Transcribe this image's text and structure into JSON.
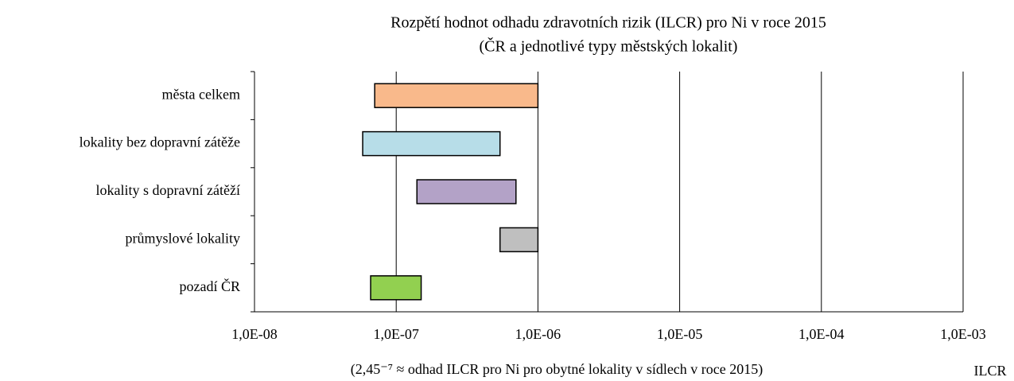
{
  "chart_data": {
    "type": "floating-bar",
    "title": "Rozpětí hodnot odhadu zdravotních rizik (ILCR) pro Ni v roce 2015",
    "subtitle": "(ČR a jednotlivé typy městských lokalit)",
    "categories": [
      "města celkem",
      "lokality bez dopravní zátěže",
      "lokality s dopravní zátěží",
      "průmyslové lokality",
      "pozadí ČR"
    ],
    "low": [
      7.05e-08,
      5.8e-08,
      1.4e-07,
      5.4e-07,
      6.6e-08
    ],
    "high": [
      1e-06,
      5.4e-07,
      7e-07,
      1e-06,
      1.5e-07
    ],
    "colors": [
      "#f9b98b",
      "#b7dde8",
      "#b3a2c7",
      "#bfbfbf",
      "#92d050"
    ],
    "xscale": "log",
    "xlim": [
      1e-08,
      0.001
    ],
    "xticks": [
      {
        "value": 1e-08,
        "label": "1,0E-08"
      },
      {
        "value": 1e-07,
        "label": "1,0E-07"
      },
      {
        "value": 1e-06,
        "label": "1,0E-06"
      },
      {
        "value": 1e-05,
        "label": "1,0E-05"
      },
      {
        "value": 0.0001,
        "label": "1,0E-04"
      },
      {
        "value": 0.001,
        "label": "1,0E-03"
      }
    ],
    "grid": true,
    "xlabel": "(2,45⁻⁷ ≈ odhad ILCR pro Ni pro obytné lokality v sídlech v roce 2015)",
    "xunit": "ILCR"
  }
}
